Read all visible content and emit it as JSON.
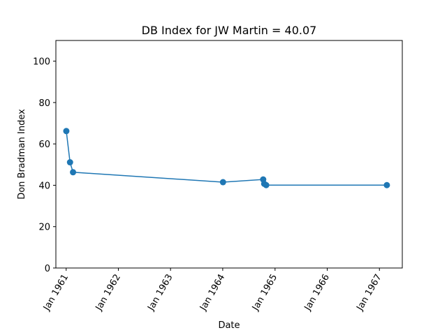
{
  "chart_data": {
    "type": "line",
    "title": "DB Index for JW Martin = 40.07",
    "xlabel": "Date",
    "ylabel": "Don Bradman Index",
    "x_tick_labels": [
      "Jan 1961",
      "Jan 1962",
      "Jan 1963",
      "Jan 1964",
      "Jan 1965",
      "Jan 1966",
      "Jan 1967"
    ],
    "y_tick_labels": [
      "0",
      "20",
      "40",
      "60",
      "80",
      "100"
    ],
    "xlim": [
      "1960-10-21",
      "1967-06-10"
    ],
    "ylim": [
      0,
      110
    ],
    "grid": false,
    "line_color": "#1f77b4",
    "series": [
      {
        "x": [
          "1961-01-02",
          "1961-01-28",
          "1961-02-18",
          "1964-01-03",
          "1964-10-10",
          "1964-10-17",
          "1964-10-31",
          "1967-02-22"
        ],
        "y": [
          66.2,
          51.1,
          46.3,
          41.5,
          42.8,
          40.7,
          40.07,
          40.07
        ]
      }
    ]
  }
}
